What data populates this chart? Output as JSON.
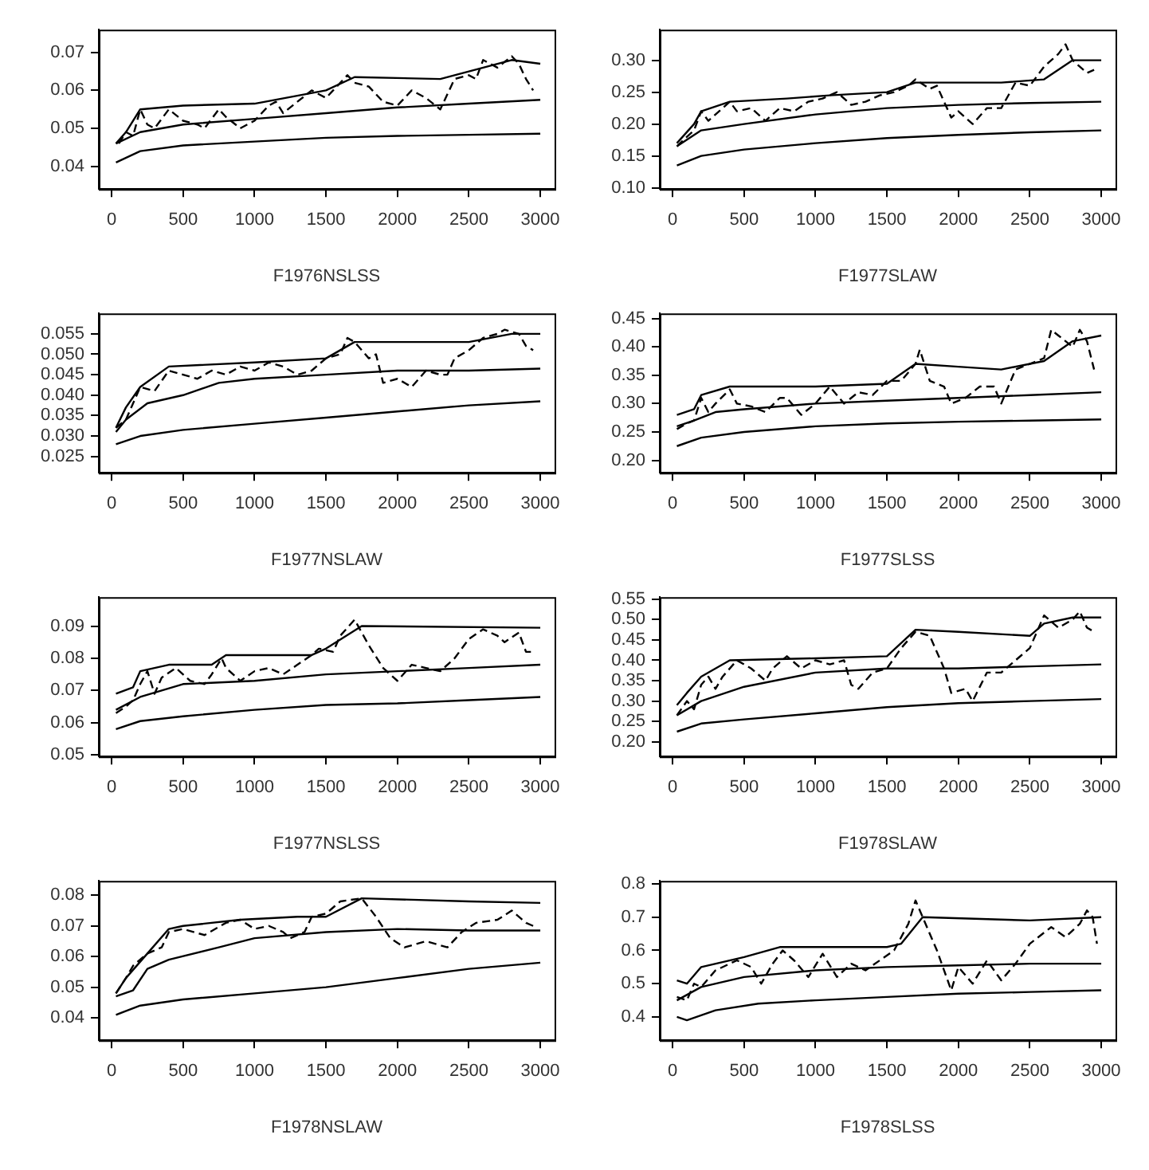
{
  "chart_data": [
    {
      "type": "line",
      "xlabel": "F1976NSLSS",
      "xlim": [
        -90,
        3100
      ],
      "xticks": [
        0,
        500,
        1000,
        1500,
        2000,
        2500,
        3000
      ],
      "ylim": [
        0.034,
        0.076
      ],
      "yticks": [
        0.04,
        0.05,
        0.06,
        0.07
      ],
      "series": [
        {
          "color": "#000000",
          "line_style": "dashed",
          "x": [
            50,
            100,
            150,
            200,
            250,
            300,
            400,
            500,
            600,
            650,
            750,
            800,
            900,
            1000,
            1100,
            1150,
            1200,
            1300,
            1400,
            1500,
            1550,
            1650,
            1700,
            1800,
            1900,
            2000,
            2100,
            2200,
            2300,
            2400,
            2500,
            2550,
            2600,
            2700,
            2800,
            2850,
            2900,
            2950
          ],
          "values": [
            0.046,
            0.049,
            0.048,
            0.055,
            0.051,
            0.05,
            0.055,
            0.052,
            0.051,
            0.05,
            0.055,
            0.053,
            0.05,
            0.052,
            0.056,
            0.057,
            0.054,
            0.057,
            0.06,
            0.058,
            0.06,
            0.064,
            0.062,
            0.061,
            0.057,
            0.056,
            0.06,
            0.058,
            0.055,
            0.063,
            0.064,
            0.063,
            0.068,
            0.066,
            0.069,
            0.067,
            0.063,
            0.06
          ]
        },
        {
          "color": "#000000",
          "line_style": "solid",
          "x": [
            30,
            100,
            200,
            500,
            1000,
            1500,
            1700,
            2300,
            2500,
            2800,
            3000
          ],
          "values": [
            0.046,
            0.049,
            0.055,
            0.056,
            0.0565,
            0.06,
            0.0635,
            0.063,
            0.065,
            0.068,
            0.067
          ]
        },
        {
          "color": "#000000",
          "line_style": "solid",
          "x": [
            30,
            200,
            500,
            1000,
            1500,
            2000,
            2500,
            3000
          ],
          "values": [
            0.046,
            0.049,
            0.051,
            0.0525,
            0.054,
            0.0555,
            0.0565,
            0.0575
          ]
        },
        {
          "color": "#000000",
          "line_style": "solid",
          "x": [
            30,
            200,
            500,
            1000,
            1500,
            2000,
            2500,
            3000
          ],
          "values": [
            0.041,
            0.044,
            0.0455,
            0.0465,
            0.0475,
            0.048,
            0.0483,
            0.0486
          ]
        }
      ]
    },
    {
      "type": "line",
      "xlabel": "F1977SLAW",
      "xlim": [
        -90,
        3100
      ],
      "xticks": [
        0,
        500,
        1000,
        1500,
        2000,
        2500,
        3000
      ],
      "ylim": [
        0.098,
        0.348
      ],
      "yticks": [
        {
          "value": 0.1,
          "label": "0.10"
        },
        0.15,
        {
          "value": 0.2,
          "label": "0.20"
        },
        0.25,
        {
          "value": 0.3,
          "label": "0.30"
        }
      ],
      "series": [
        {
          "color": "#000000",
          "line_style": "dashed",
          "x": [
            30,
            100,
            150,
            200,
            250,
            300,
            400,
            450,
            550,
            650,
            750,
            850,
            950,
            1050,
            1150,
            1250,
            1350,
            1450,
            1550,
            1650,
            1700,
            1800,
            1850,
            1950,
            2000,
            2100,
            2200,
            2300,
            2400,
            2500,
            2600,
            2700,
            2750,
            2800,
            2900,
            2950
          ],
          "values": [
            0.165,
            0.18,
            0.19,
            0.22,
            0.205,
            0.215,
            0.235,
            0.22,
            0.225,
            0.205,
            0.225,
            0.22,
            0.235,
            0.24,
            0.25,
            0.23,
            0.235,
            0.245,
            0.25,
            0.26,
            0.27,
            0.255,
            0.26,
            0.21,
            0.22,
            0.2,
            0.225,
            0.225,
            0.265,
            0.26,
            0.29,
            0.31,
            0.325,
            0.3,
            0.28,
            0.285
          ]
        },
        {
          "color": "#000000",
          "line_style": "solid",
          "x": [
            30,
            150,
            200,
            400,
            800,
            1100,
            1500,
            1700,
            2300,
            2600,
            2800,
            3000
          ],
          "values": [
            0.17,
            0.2,
            0.22,
            0.235,
            0.24,
            0.245,
            0.25,
            0.265,
            0.265,
            0.27,
            0.3,
            0.3
          ]
        },
        {
          "color": "#000000",
          "line_style": "solid",
          "x": [
            30,
            200,
            500,
            1000,
            1500,
            2000,
            2500,
            3000
          ],
          "values": [
            0.165,
            0.19,
            0.2,
            0.215,
            0.225,
            0.23,
            0.233,
            0.235
          ]
        },
        {
          "color": "#000000",
          "line_style": "solid",
          "x": [
            30,
            200,
            500,
            1000,
            1500,
            2000,
            2500,
            3000
          ],
          "values": [
            0.135,
            0.15,
            0.16,
            0.17,
            0.178,
            0.183,
            0.187,
            0.19
          ]
        }
      ]
    },
    {
      "type": "line",
      "xlabel": "F1977NSLAW",
      "xlim": [
        -90,
        3100
      ],
      "xticks": [
        0,
        500,
        1000,
        1500,
        2000,
        2500,
        3000
      ],
      "ylim": [
        0.021,
        0.06
      ],
      "yticks": [
        0.025,
        {
          "value": 0.03,
          "label": "0.030"
        },
        0.035,
        {
          "value": 0.04,
          "label": "0.040"
        },
        0.045,
        {
          "value": 0.05,
          "label": "0.050"
        },
        0.055
      ],
      "series": [
        {
          "color": "#000000",
          "line_style": "dashed",
          "x": [
            30,
            100,
            150,
            200,
            300,
            400,
            500,
            600,
            700,
            800,
            900,
            1000,
            1100,
            1200,
            1300,
            1400,
            1500,
            1600,
            1650,
            1700,
            1800,
            1850,
            1900,
            2000,
            2100,
            2200,
            2300,
            2350,
            2400,
            2500,
            2600,
            2700,
            2750,
            2850,
            2900,
            2950
          ],
          "values": [
            0.032,
            0.034,
            0.038,
            0.042,
            0.041,
            0.046,
            0.045,
            0.044,
            0.046,
            0.045,
            0.047,
            0.046,
            0.048,
            0.047,
            0.045,
            0.046,
            0.049,
            0.05,
            0.054,
            0.053,
            0.049,
            0.05,
            0.043,
            0.044,
            0.042,
            0.046,
            0.045,
            0.045,
            0.049,
            0.051,
            0.054,
            0.055,
            0.056,
            0.055,
            0.052,
            0.051
          ]
        },
        {
          "color": "#000000",
          "line_style": "solid",
          "x": [
            30,
            100,
            200,
            400,
            1000,
            1500,
            1700,
            2000,
            2500,
            2800,
            3000
          ],
          "values": [
            0.032,
            0.037,
            0.042,
            0.047,
            0.048,
            0.049,
            0.053,
            0.053,
            0.053,
            0.055,
            0.055
          ]
        },
        {
          "color": "#000000",
          "line_style": "solid",
          "x": [
            30,
            100,
            250,
            500,
            750,
            1000,
            1500,
            2000,
            2500,
            3000
          ],
          "values": [
            0.031,
            0.034,
            0.038,
            0.04,
            0.043,
            0.044,
            0.045,
            0.046,
            0.046,
            0.0465
          ]
        },
        {
          "color": "#000000",
          "line_style": "solid",
          "x": [
            30,
            200,
            500,
            1000,
            1500,
            2000,
            2500,
            3000
          ],
          "values": [
            0.028,
            0.03,
            0.0315,
            0.033,
            0.0345,
            0.036,
            0.0375,
            0.0385
          ]
        }
      ]
    },
    {
      "type": "line",
      "xlabel": "F1977SLSS",
      "xlim": [
        -90,
        3100
      ],
      "xticks": [
        0,
        500,
        1000,
        1500,
        2000,
        2500,
        3000
      ],
      "ylim": [
        0.178,
        0.459
      ],
      "yticks": [
        {
          "value": 0.2,
          "label": "0.20"
        },
        0.25,
        {
          "value": 0.3,
          "label": "0.30"
        },
        0.35,
        {
          "value": 0.4,
          "label": "0.40"
        },
        0.45
      ],
      "series": [
        {
          "color": "#000000",
          "line_style": "dashed",
          "x": [
            30,
            100,
            150,
            200,
            250,
            300,
            400,
            450,
            550,
            650,
            750,
            800,
            900,
            1000,
            1100,
            1200,
            1300,
            1400,
            1500,
            1600,
            1700,
            1730,
            1800,
            1900,
            1950,
            2050,
            2150,
            2250,
            2300,
            2400,
            2500,
            2600,
            2650,
            2700,
            2800,
            2850,
            2900,
            2950
          ],
          "values": [
            0.255,
            0.265,
            0.27,
            0.31,
            0.285,
            0.3,
            0.325,
            0.3,
            0.295,
            0.285,
            0.31,
            0.31,
            0.28,
            0.3,
            0.33,
            0.3,
            0.32,
            0.315,
            0.34,
            0.34,
            0.37,
            0.395,
            0.34,
            0.33,
            0.3,
            0.31,
            0.33,
            0.33,
            0.3,
            0.36,
            0.37,
            0.38,
            0.43,
            0.42,
            0.4,
            0.43,
            0.41,
            0.36
          ]
        },
        {
          "color": "#000000",
          "line_style": "solid",
          "x": [
            30,
            150,
            200,
            400,
            1000,
            1500,
            1700,
            2000,
            2300,
            2600,
            2800,
            3000
          ],
          "values": [
            0.28,
            0.29,
            0.315,
            0.33,
            0.33,
            0.335,
            0.37,
            0.365,
            0.36,
            0.375,
            0.41,
            0.42
          ]
        },
        {
          "color": "#000000",
          "line_style": "solid",
          "x": [
            30,
            150,
            300,
            500,
            1000,
            1500,
            2000,
            2500,
            3000
          ],
          "values": [
            0.26,
            0.27,
            0.285,
            0.29,
            0.3,
            0.305,
            0.31,
            0.315,
            0.32
          ]
        },
        {
          "color": "#000000",
          "line_style": "solid",
          "x": [
            30,
            200,
            500,
            1000,
            1500,
            2000,
            2500,
            3000
          ],
          "values": [
            0.225,
            0.24,
            0.25,
            0.26,
            0.265,
            0.268,
            0.27,
            0.272
          ]
        }
      ]
    },
    {
      "type": "line",
      "xlabel": "F1977NSLSS",
      "xlim": [
        -90,
        3100
      ],
      "xticks": [
        0,
        500,
        1000,
        1500,
        2000,
        2500,
        3000
      ],
      "ylim": [
        0.0495,
        0.099
      ],
      "yticks": [
        0.05,
        0.06,
        0.07,
        0.08,
        0.09
      ],
      "series": [
        {
          "color": "#000000",
          "line_style": "dashed",
          "x": [
            30,
            100,
            150,
            200,
            250,
            300,
            350,
            450,
            550,
            650,
            700,
            770,
            800,
            900,
            1000,
            1100,
            1200,
            1300,
            1400,
            1450,
            1550,
            1600,
            1700,
            1750,
            1800,
            1900,
            2000,
            2100,
            2200,
            2300,
            2400,
            2500,
            2600,
            2700,
            2750,
            2850,
            2900,
            2950
          ],
          "values": [
            0.063,
            0.065,
            0.067,
            0.072,
            0.076,
            0.069,
            0.074,
            0.077,
            0.073,
            0.072,
            0.075,
            0.08,
            0.077,
            0.073,
            0.076,
            0.077,
            0.075,
            0.078,
            0.081,
            0.083,
            0.082,
            0.087,
            0.092,
            0.088,
            0.084,
            0.077,
            0.073,
            0.078,
            0.077,
            0.076,
            0.08,
            0.086,
            0.089,
            0.087,
            0.085,
            0.088,
            0.082,
            0.082
          ]
        },
        {
          "color": "#000000",
          "line_style": "solid",
          "x": [
            30,
            150,
            200,
            400,
            700,
            800,
            1400,
            1500,
            1750,
            3000
          ],
          "values": [
            0.069,
            0.071,
            0.076,
            0.078,
            0.078,
            0.081,
            0.081,
            0.083,
            0.09,
            0.0895
          ]
        },
        {
          "color": "#000000",
          "line_style": "solid",
          "x": [
            30,
            200,
            500,
            1000,
            1500,
            2000,
            2500,
            3000
          ],
          "values": [
            0.064,
            0.068,
            0.072,
            0.073,
            0.075,
            0.076,
            0.077,
            0.078
          ]
        },
        {
          "color": "#000000",
          "line_style": "solid",
          "x": [
            30,
            200,
            500,
            1000,
            1500,
            2000,
            2500,
            3000
          ],
          "values": [
            0.058,
            0.0605,
            0.062,
            0.064,
            0.0655,
            0.066,
            0.067,
            0.068
          ]
        }
      ]
    },
    {
      "type": "line",
      "xlabel": "F1978SLAW",
      "xlim": [
        -90,
        3100
      ],
      "xticks": [
        0,
        500,
        1000,
        1500,
        2000,
        2500,
        3000
      ],
      "ylim": [
        0.164,
        0.555
      ],
      "yticks": [
        {
          "value": 0.2,
          "label": "0.20"
        },
        0.25,
        {
          "value": 0.3,
          "label": "0.30"
        },
        0.35,
        {
          "value": 0.4,
          "label": "0.40"
        },
        0.45,
        {
          "value": 0.5,
          "label": "0.50"
        },
        0.55
      ],
      "series": [
        {
          "color": "#000000",
          "line_style": "dashed",
          "x": [
            30,
            100,
            150,
            200,
            250,
            300,
            350,
            450,
            550,
            650,
            700,
            800,
            900,
            1000,
            1100,
            1200,
            1250,
            1300,
            1400,
            1500,
            1600,
            1700,
            1800,
            1900,
            1950,
            2050,
            2100,
            2200,
            2300,
            2400,
            2500,
            2600,
            2700,
            2800,
            2850,
            2900,
            2950
          ],
          "values": [
            0.265,
            0.3,
            0.28,
            0.34,
            0.36,
            0.33,
            0.36,
            0.4,
            0.38,
            0.35,
            0.38,
            0.41,
            0.38,
            0.4,
            0.39,
            0.4,
            0.34,
            0.33,
            0.37,
            0.38,
            0.43,
            0.47,
            0.46,
            0.38,
            0.32,
            0.33,
            0.3,
            0.37,
            0.37,
            0.4,
            0.43,
            0.51,
            0.48,
            0.5,
            0.52,
            0.48,
            0.47
          ]
        },
        {
          "color": "#000000",
          "line_style": "solid",
          "x": [
            30,
            100,
            200,
            400,
            1000,
            1500,
            1700,
            2000,
            2500,
            2600,
            2800,
            3000
          ],
          "values": [
            0.29,
            0.32,
            0.36,
            0.4,
            0.405,
            0.41,
            0.475,
            0.47,
            0.46,
            0.49,
            0.505,
            0.505
          ]
        },
        {
          "color": "#000000",
          "line_style": "solid",
          "x": [
            30,
            200,
            500,
            1000,
            1500,
            2000,
            2500,
            3000
          ],
          "values": [
            0.265,
            0.3,
            0.335,
            0.37,
            0.38,
            0.38,
            0.385,
            0.39
          ]
        },
        {
          "color": "#000000",
          "line_style": "solid",
          "x": [
            30,
            200,
            500,
            1000,
            1500,
            2000,
            2500,
            3000
          ],
          "values": [
            0.225,
            0.245,
            0.255,
            0.27,
            0.285,
            0.295,
            0.3,
            0.305
          ]
        }
      ]
    },
    {
      "type": "line",
      "xlabel": "F1978NSLAW",
      "xlim": [
        -90,
        3100
      ],
      "xticks": [
        0,
        500,
        1000,
        1500,
        2000,
        2500,
        3000
      ],
      "ylim": [
        0.0327,
        0.0847
      ],
      "yticks": [
        0.04,
        0.05,
        0.06,
        0.07,
        0.08
      ],
      "series": [
        {
          "color": "#000000",
          "line_style": "dashed",
          "x": [
            30,
            100,
            150,
            250,
            350,
            400,
            500,
            650,
            800,
            900,
            1000,
            1100,
            1200,
            1250,
            1350,
            1400,
            1500,
            1600,
            1750,
            1850,
            1950,
            2050,
            2200,
            2350,
            2450,
            2550,
            2700,
            2800,
            2900,
            2950
          ],
          "values": [
            0.048,
            0.053,
            0.057,
            0.061,
            0.063,
            0.068,
            0.069,
            0.067,
            0.071,
            0.072,
            0.069,
            0.07,
            0.068,
            0.066,
            0.068,
            0.073,
            0.074,
            0.078,
            0.079,
            0.073,
            0.066,
            0.063,
            0.065,
            0.063,
            0.068,
            0.071,
            0.072,
            0.075,
            0.071,
            0.07
          ]
        },
        {
          "color": "#000000",
          "line_style": "solid",
          "x": [
            30,
            100,
            250,
            400,
            500,
            900,
            1300,
            1500,
            1750,
            2500,
            3000
          ],
          "values": [
            0.048,
            0.053,
            0.061,
            0.069,
            0.07,
            0.072,
            0.073,
            0.073,
            0.079,
            0.078,
            0.0775
          ]
        },
        {
          "color": "#000000",
          "line_style": "solid",
          "x": [
            30,
            150,
            250,
            400,
            750,
            1000,
            1500,
            2000,
            2500,
            3000
          ],
          "values": [
            0.047,
            0.049,
            0.056,
            0.059,
            0.063,
            0.066,
            0.068,
            0.069,
            0.0685,
            0.0685
          ]
        },
        {
          "color": "#000000",
          "line_style": "solid",
          "x": [
            30,
            200,
            500,
            1000,
            1500,
            2000,
            2500,
            3000
          ],
          "values": [
            0.041,
            0.044,
            0.046,
            0.048,
            0.05,
            0.053,
            0.056,
            0.058
          ]
        }
      ]
    },
    {
      "type": "line",
      "xlabel": "F1978SLSS",
      "xlim": [
        -90,
        3100
      ],
      "xticks": [
        0,
        500,
        1000,
        1500,
        2000,
        2500,
        3000
      ],
      "ylim": [
        0.33,
        0.809
      ],
      "yticks": [
        0.4,
        0.5,
        0.6,
        0.7,
        0.8
      ],
      "series": [
        {
          "color": "#000000",
          "line_style": "dashed",
          "x": [
            30,
            100,
            150,
            200,
            300,
            400,
            450,
            550,
            620,
            700,
            770,
            850,
            950,
            1050,
            1150,
            1250,
            1350,
            1450,
            1550,
            1650,
            1700,
            1750,
            1850,
            1950,
            2000,
            2100,
            2200,
            2300,
            2400,
            2500,
            2650,
            2750,
            2850,
            2900,
            2940,
            2970
          ],
          "values": [
            0.46,
            0.45,
            0.5,
            0.49,
            0.54,
            0.56,
            0.57,
            0.55,
            0.5,
            0.56,
            0.6,
            0.57,
            0.52,
            0.59,
            0.52,
            0.56,
            0.54,
            0.57,
            0.6,
            0.68,
            0.75,
            0.7,
            0.6,
            0.48,
            0.55,
            0.5,
            0.57,
            0.51,
            0.56,
            0.62,
            0.67,
            0.64,
            0.68,
            0.72,
            0.7,
            0.62
          ]
        },
        {
          "color": "#000000",
          "line_style": "solid",
          "x": [
            30,
            100,
            200,
            500,
            750,
            1500,
            1600,
            1750,
            2500,
            3000
          ],
          "values": [
            0.51,
            0.5,
            0.55,
            0.58,
            0.61,
            0.61,
            0.62,
            0.7,
            0.69,
            0.7
          ]
        },
        {
          "color": "#000000",
          "line_style": "solid",
          "x": [
            30,
            200,
            500,
            1000,
            1500,
            2000,
            2500,
            3000
          ],
          "values": [
            0.45,
            0.49,
            0.52,
            0.54,
            0.55,
            0.555,
            0.56,
            0.56
          ]
        },
        {
          "color": "#000000",
          "line_style": "solid",
          "x": [
            30,
            100,
            300,
            600,
            1000,
            1500,
            2000,
            2500,
            3000
          ],
          "values": [
            0.4,
            0.39,
            0.42,
            0.44,
            0.45,
            0.46,
            0.47,
            0.475,
            0.48
          ]
        }
      ]
    }
  ]
}
